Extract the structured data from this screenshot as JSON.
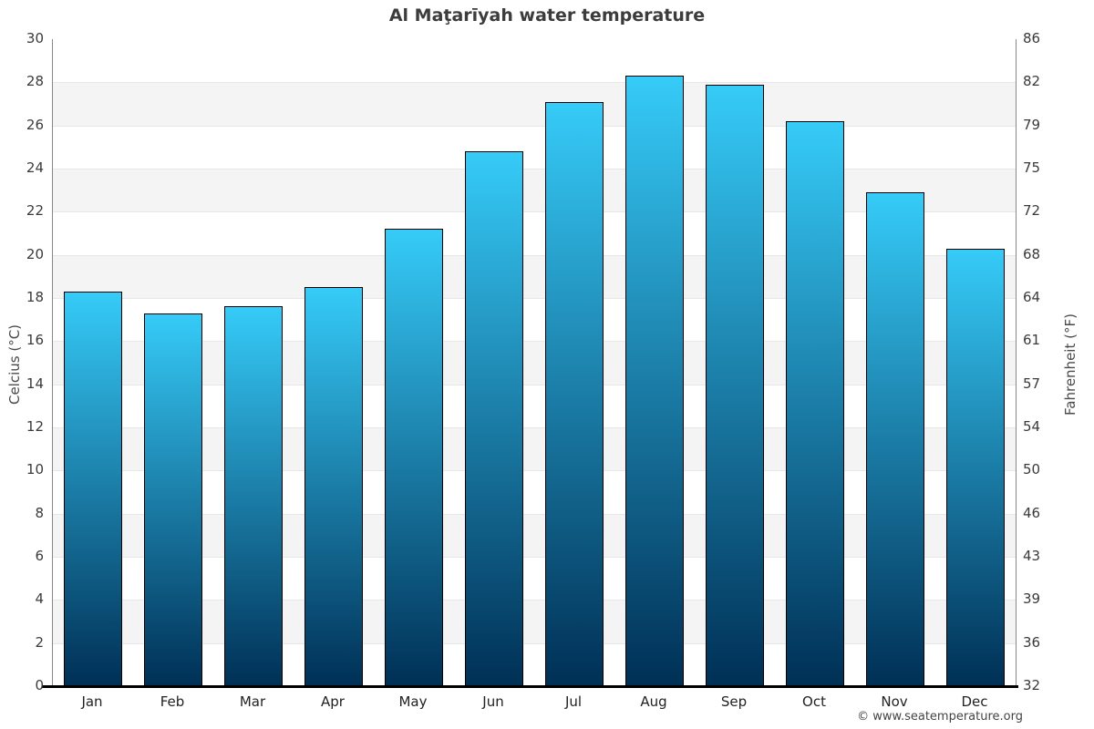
{
  "title": "Al Maţarīyah water temperature",
  "footer": "© www.seatemperature.org",
  "chart_data": {
    "type": "bar",
    "title": "Al Maţarīyah water temperature",
    "categories": [
      "Jan",
      "Feb",
      "Mar",
      "Apr",
      "May",
      "Jun",
      "Jul",
      "Aug",
      "Sep",
      "Oct",
      "Nov",
      "Dec"
    ],
    "values": [
      18.3,
      17.3,
      17.6,
      18.5,
      21.2,
      24.8,
      27.1,
      28.3,
      27.9,
      26.2,
      22.9,
      20.3
    ],
    "unit": "°C",
    "ylabel_left": "Celcius (°C)",
    "ylabel_right": "Fahrenheit (°F)",
    "ylim": [
      0,
      30
    ],
    "ytick_step": 2,
    "left_tick_labels": [
      "30",
      "28",
      "26",
      "24",
      "22",
      "20",
      "18",
      "16",
      "14",
      "12",
      "10",
      "8",
      "6",
      "4",
      "2",
      "0"
    ],
    "right_tick_labels": [
      "86",
      "82",
      "79",
      "75",
      "72",
      "68",
      "64",
      "61",
      "57",
      "54",
      "50",
      "46",
      "43",
      "39",
      "36",
      "32"
    ],
    "grid": "alternating horizontal bands, light gray on white",
    "legend": "none",
    "colors": {
      "bar_gradient_top": "#36cbf8",
      "bar_gradient_bottom": "#003056",
      "bar_border": "#000000",
      "band_shaded": "#f4f4f4",
      "grid_line": "#e7e7e7",
      "axis_side": "#888888",
      "axis_bottom": "#000000",
      "title_text": "#3c3c3c",
      "tick_text": "#3a3a3a"
    }
  }
}
